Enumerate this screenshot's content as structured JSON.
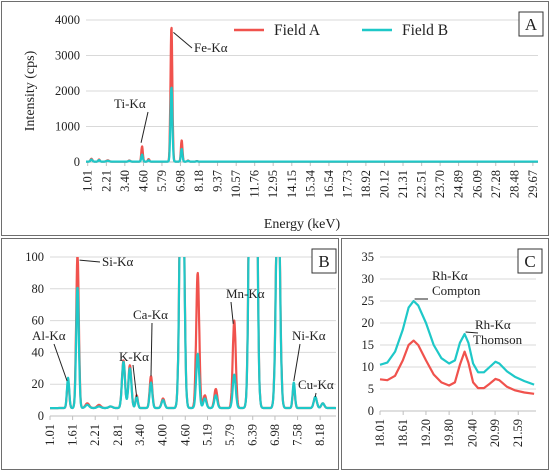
{
  "colors": {
    "field_a": "#f0524d",
    "field_b": "#1ec8c8",
    "grid": "#d9d9d9",
    "axis": "#bfbfbf"
  },
  "legend": {
    "field_a": "Field A",
    "field_b": "Field B"
  },
  "chart_data": [
    {
      "panel": "A",
      "type": "line",
      "xlabel": "Energy (keV)",
      "ylabel": "Intensity (cps)",
      "xlim": [
        0.9,
        30.0
      ],
      "ylim": [
        0,
        4000
      ],
      "yticks": [
        "0",
        "1000",
        "2000",
        "3000",
        "4000"
      ],
      "xticks": [
        "1.01",
        "2.21",
        "3.40",
        "4.60",
        "5.79",
        "6.98",
        "8.18",
        "9.37",
        "10.57",
        "11.76",
        "12.95",
        "14.15",
        "15.34",
        "16.54",
        "17.73",
        "18.92",
        "20.12",
        "21.31",
        "22.51",
        "23.70",
        "24.89",
        "26.09",
        "27.28",
        "28.48",
        "29.67"
      ],
      "grid": "horizontal",
      "legend_position": "top-center",
      "annotations": [
        {
          "text": "Ti-Kα",
          "x": 4.51,
          "y": 400
        },
        {
          "text": "Fe-Kα",
          "x": 6.4,
          "y": 3700
        }
      ],
      "series": [
        {
          "name": "Field A",
          "peaks": [
            [
              1.25,
              80,
              0.06
            ],
            [
              1.74,
              60,
              0.05
            ],
            [
              2.3,
              35,
              0.08
            ],
            [
              3.69,
              30,
              0.06
            ],
            [
              4.51,
              430,
              0.05
            ],
            [
              4.93,
              70,
              0.05
            ],
            [
              6.4,
              3800,
              0.06
            ],
            [
              7.06,
              600,
              0.05
            ],
            [
              7.47,
              30,
              0.05
            ],
            [
              8.04,
              15,
              0.05
            ]
          ],
          "baseline": 12
        },
        {
          "name": "Field B",
          "peaks": [
            [
              1.25,
              60,
              0.06
            ],
            [
              1.74,
              45,
              0.05
            ],
            [
              2.3,
              25,
              0.08
            ],
            [
              3.69,
              25,
              0.06
            ],
            [
              4.51,
              200,
              0.05
            ],
            [
              4.93,
              40,
              0.05
            ],
            [
              6.4,
              2100,
              0.06
            ],
            [
              7.06,
              360,
              0.05
            ],
            [
              7.47,
              25,
              0.05
            ],
            [
              8.04,
              12,
              0.05
            ]
          ],
          "baseline": 10
        }
      ]
    },
    {
      "panel": "B",
      "type": "line",
      "xlim": [
        1.01,
        8.6
      ],
      "ylim": [
        0,
        100
      ],
      "yticks": [
        "0",
        "20",
        "40",
        "60",
        "80",
        "100"
      ],
      "xticks": [
        "1.01",
        "1.61",
        "2.21",
        "2.81",
        "3.40",
        "4.00",
        "4.60",
        "5.19",
        "5.79",
        "6.39",
        "6.98",
        "7.58",
        "8.18"
      ],
      "grid": "horizontal",
      "annotations": [
        {
          "text": "Al-Kα",
          "x": 1.49,
          "y": 22
        },
        {
          "text": "Si-Kα",
          "x": 1.74,
          "y": 100
        },
        {
          "text": "K-Kα",
          "x": 3.31,
          "y": 12
        },
        {
          "text": "Ca-Kα",
          "x": 3.69,
          "y": 24
        },
        {
          "text": "Mn-Kα",
          "x": 5.9,
          "y": 60
        },
        {
          "text": "Ni-Kα",
          "x": 7.48,
          "y": 22
        },
        {
          "text": "Cu-Kα",
          "x": 8.05,
          "y": 12
        }
      ],
      "series": [
        {
          "name": "Field A",
          "peaks": [
            [
              1.49,
              17,
              0.03
            ],
            [
              1.74,
              96,
              0.035
            ],
            [
              2.0,
              3,
              0.05
            ],
            [
              2.31,
              2,
              0.05
            ],
            [
              2.62,
              1,
              0.05
            ],
            [
              2.96,
              30,
              0.04
            ],
            [
              3.13,
              27,
              0.04
            ],
            [
              3.31,
              8,
              0.03
            ],
            [
              3.69,
              20,
              0.035
            ],
            [
              4.01,
              6,
              0.04
            ],
            [
              4.51,
              240,
              0.05
            ],
            [
              4.93,
              85,
              0.04
            ],
            [
              5.12,
              8,
              0.04
            ],
            [
              5.41,
              12,
              0.04
            ],
            [
              5.9,
              55,
              0.04
            ],
            [
              6.4,
              900,
              0.06
            ],
            [
              7.06,
              160,
              0.05
            ],
            [
              7.48,
              14,
              0.03
            ],
            [
              8.05,
              7,
              0.04
            ],
            [
              8.25,
              3,
              0.04
            ]
          ],
          "baseline": 5,
          "slope": 0.9
        },
        {
          "name": "Field B",
          "peaks": [
            [
              1.49,
              19,
              0.03
            ],
            [
              1.74,
              76,
              0.035
            ],
            [
              2.0,
              2,
              0.05
            ],
            [
              2.31,
              1,
              0.05
            ],
            [
              2.62,
              1,
              0.05
            ],
            [
              2.96,
              29,
              0.04
            ],
            [
              3.13,
              25,
              0.04
            ],
            [
              3.31,
              7,
              0.03
            ],
            [
              3.69,
              16,
              0.035
            ],
            [
              4.01,
              5,
              0.04
            ],
            [
              4.51,
              230,
              0.05
            ],
            [
              4.93,
              34,
              0.04
            ],
            [
              5.12,
              6,
              0.04
            ],
            [
              5.41,
              8,
              0.04
            ],
            [
              5.9,
              21,
              0.04
            ],
            [
              6.4,
              850,
              0.06
            ],
            [
              7.06,
              150,
              0.05
            ],
            [
              7.48,
              16,
              0.03
            ],
            [
              8.05,
              7,
              0.04
            ],
            [
              8.25,
              3,
              0.04
            ]
          ],
          "baseline": 5,
          "slope": 0.9
        }
      ]
    },
    {
      "panel": "C",
      "type": "line",
      "xlim": [
        18.01,
        22.05
      ],
      "ylim": [
        0,
        35
      ],
      "yticks": [
        "0",
        "5",
        "10",
        "15",
        "20",
        "25",
        "30",
        "35"
      ],
      "xticks": [
        "18.01",
        "18.61",
        "19.20",
        "19.80",
        "20.40",
        "20.99",
        "21.59"
      ],
      "grid": "horizontal",
      "annotations": [
        {
          "text": "Rh-Kα",
          "x": 18.9,
          "y": 25
        },
        {
          "text": "Compton",
          "x": 18.9,
          "y": 25
        },
        {
          "text": "Rh-Kα",
          "x": 20.21,
          "y": 17.5
        },
        {
          "text": "Thomson",
          "x": 20.21,
          "y": 17.5
        }
      ],
      "series": [
        {
          "name": "Field A",
          "points": [
            [
              18.01,
              7.2
            ],
            [
              18.2,
              7.0
            ],
            [
              18.4,
              8.0
            ],
            [
              18.6,
              11.5
            ],
            [
              18.75,
              15.0
            ],
            [
              18.88,
              16.0
            ],
            [
              19.0,
              15.0
            ],
            [
              19.2,
              11.5
            ],
            [
              19.4,
              8.3
            ],
            [
              19.6,
              6.5
            ],
            [
              19.8,
              5.8
            ],
            [
              19.95,
              6.5
            ],
            [
              20.08,
              10.5
            ],
            [
              20.2,
              13.5
            ],
            [
              20.3,
              11.0
            ],
            [
              20.42,
              6.5
            ],
            [
              20.55,
              5.2
            ],
            [
              20.7,
              5.2
            ],
            [
              20.85,
              6.2
            ],
            [
              21.0,
              7.3
            ],
            [
              21.1,
              7.0
            ],
            [
              21.3,
              5.5
            ],
            [
              21.5,
              4.7
            ],
            [
              21.75,
              4.2
            ],
            [
              22.0,
              3.9
            ]
          ]
        },
        {
          "name": "Field B",
          "points": [
            [
              18.01,
              10.5
            ],
            [
              18.2,
              11.0
            ],
            [
              18.4,
              13.5
            ],
            [
              18.6,
              18.5
            ],
            [
              18.75,
              23.5
            ],
            [
              18.88,
              25.0
            ],
            [
              19.0,
              24.0
            ],
            [
              19.2,
              20.0
            ],
            [
              19.4,
              15.0
            ],
            [
              19.6,
              12.0
            ],
            [
              19.8,
              10.8
            ],
            [
              19.95,
              11.5
            ],
            [
              20.08,
              15.5
            ],
            [
              20.2,
              17.5
            ],
            [
              20.3,
              15.5
            ],
            [
              20.42,
              10.8
            ],
            [
              20.55,
              8.8
            ],
            [
              20.7,
              8.8
            ],
            [
              20.85,
              10.0
            ],
            [
              21.0,
              11.2
            ],
            [
              21.1,
              10.8
            ],
            [
              21.3,
              9.0
            ],
            [
              21.5,
              7.8
            ],
            [
              21.75,
              6.8
            ],
            [
              22.0,
              6.0
            ]
          ]
        }
      ]
    }
  ]
}
